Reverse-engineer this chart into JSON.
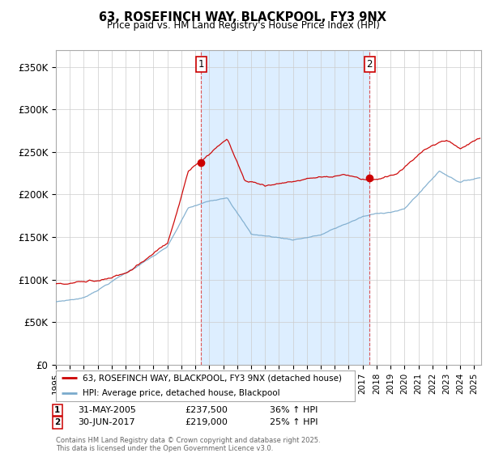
{
  "title": "63, ROSEFINCH WAY, BLACKPOOL, FY3 9NX",
  "subtitle": "Price paid vs. HM Land Registry's House Price Index (HPI)",
  "ylim": [
    0,
    370000
  ],
  "yticks": [
    0,
    50000,
    100000,
    150000,
    200000,
    250000,
    300000,
    350000
  ],
  "ytick_labels": [
    "£0",
    "£50K",
    "£100K",
    "£150K",
    "£200K",
    "£250K",
    "£300K",
    "£350K"
  ],
  "xlim_start": 1995.0,
  "xlim_end": 2025.5,
  "xticks": [
    1995,
    1996,
    1997,
    1998,
    1999,
    2000,
    2001,
    2002,
    2003,
    2004,
    2005,
    2006,
    2007,
    2008,
    2009,
    2010,
    2011,
    2012,
    2013,
    2014,
    2015,
    2016,
    2017,
    2018,
    2019,
    2020,
    2021,
    2022,
    2023,
    2024,
    2025
  ],
  "transaction1_x": 2005.42,
  "transaction1_y": 237500,
  "transaction1_label": "1",
  "transaction1_date": "31-MAY-2005",
  "transaction1_price": "£237,500",
  "transaction1_hpi": "36% ↑ HPI",
  "transaction2_x": 2017.5,
  "transaction2_y": 219000,
  "transaction2_label": "2",
  "transaction2_date": "30-JUN-2017",
  "transaction2_price": "£219,000",
  "transaction2_hpi": "25% ↑ HPI",
  "vline_color": "#dd4444",
  "red_line_color": "#cc0000",
  "blue_line_color": "#7aaacc",
  "shade_color": "#ddeeff",
  "background_color": "#ffffff",
  "grid_color": "#cccccc",
  "legend_label_red": "63, ROSEFINCH WAY, BLACKPOOL, FY3 9NX (detached house)",
  "legend_label_blue": "HPI: Average price, detached house, Blackpool",
  "footer": "Contains HM Land Registry data © Crown copyright and database right 2025.\nThis data is licensed under the Open Government Licence v3.0."
}
